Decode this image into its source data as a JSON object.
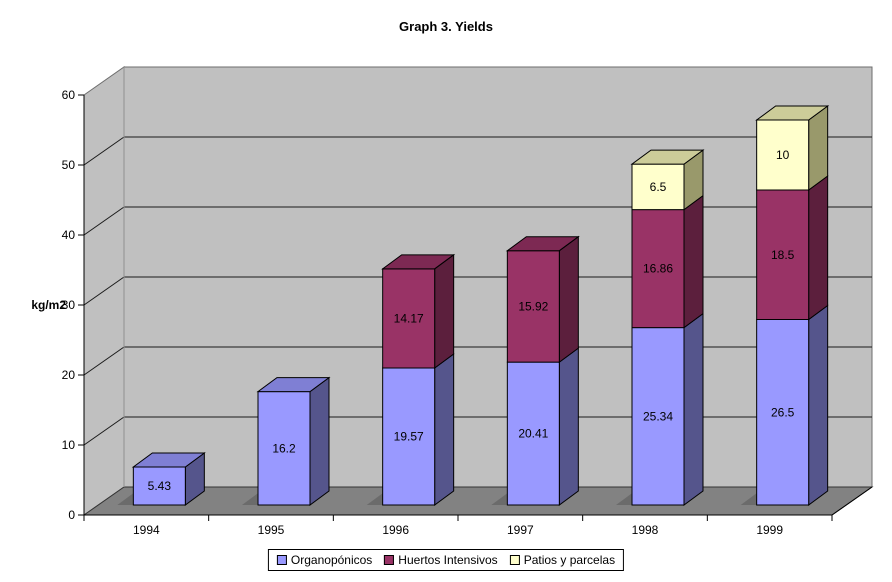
{
  "title": "Graph 3. Yields",
  "chart_data": {
    "type": "bar",
    "subtype": "stacked-3d-column",
    "title": "Graph 3. Yields",
    "xlabel": "",
    "ylabel": "kg/m2",
    "categories": [
      "1994",
      "1995",
      "1996",
      "1997",
      "1998",
      "1999"
    ],
    "series": [
      {
        "name": "Organopónicos",
        "color": "#9999FF",
        "side_color": "#55558C",
        "top_color": "#7F7FD4",
        "values": [
          5.43,
          16.2,
          19.57,
          20.41,
          25.34,
          26.5
        ],
        "labels": [
          "5.43",
          "16.2",
          "19.57",
          "20.41",
          "25.34",
          "26.5"
        ]
      },
      {
        "name": "Huertos Intensivos",
        "color": "#993366",
        "side_color": "#5C1F3D",
        "top_color": "#7D2953",
        "values": [
          0,
          0,
          14.17,
          15.92,
          16.86,
          18.5
        ],
        "labels": [
          "",
          "",
          "14.17",
          "15.92",
          "16.86",
          "18.5"
        ]
      },
      {
        "name": "Patios y parcelas",
        "color": "#FFFFCC",
        "side_color": "#99996B",
        "top_color": "#CCCC99",
        "values": [
          0,
          0,
          0,
          0,
          6.5,
          10
        ],
        "labels": [
          "",
          "",
          "",
          "",
          "6.5",
          "10"
        ]
      }
    ],
    "y_axis": {
      "min": 0,
      "max": 60,
      "step": 10,
      "ticks": [
        "0",
        "10",
        "20",
        "30",
        "40",
        "50",
        "60"
      ]
    },
    "ylim": [
      0,
      60
    ],
    "grid": true,
    "legend_position": "bottom",
    "wall_color": "#C0C0C0",
    "floor_color": "#828282",
    "shadow_color": "#6B6B6B",
    "background": "#FFFFFF",
    "label_color": "#000000"
  }
}
